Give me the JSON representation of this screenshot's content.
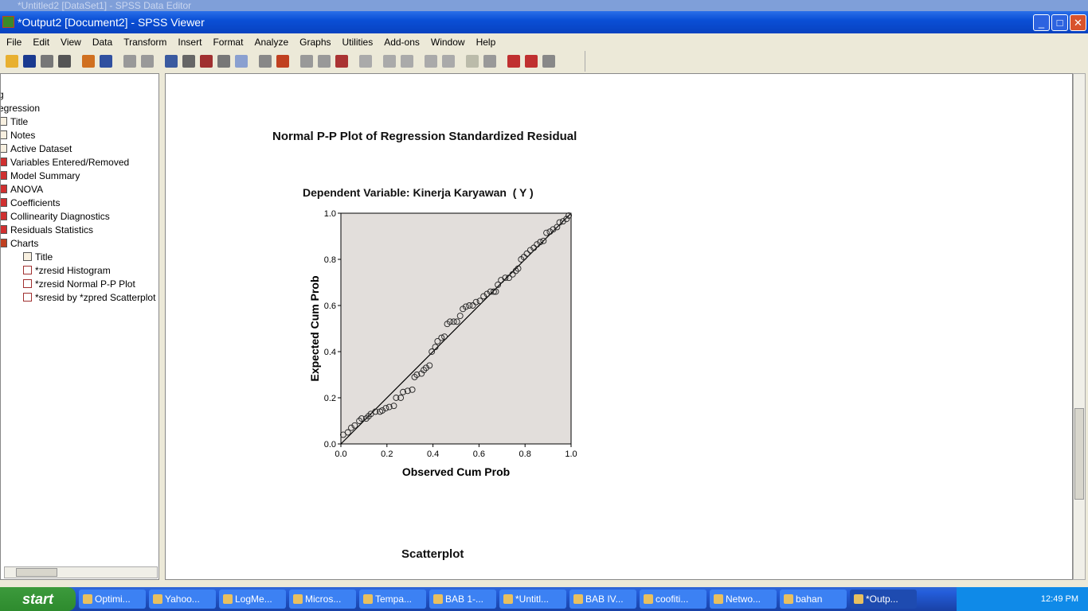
{
  "background_window_title": "*Untitled2 [DataSet1] - SPSS Data Editor",
  "window": {
    "title": "*Output2 [Document2] - SPSS Viewer",
    "min": "_",
    "max": "□",
    "close": "✕"
  },
  "menu": [
    "File",
    "Edit",
    "View",
    "Data",
    "Transform",
    "Insert",
    "Format",
    "Analyze",
    "Graphs",
    "Utilities",
    "Add-ons",
    "Window",
    "Help"
  ],
  "toolbar_icons": [
    "open-icon",
    "save-icon",
    "print-icon",
    "print-preview-icon",
    "export-icon",
    "goto-data-icon",
    "undo-icon",
    "redo-icon",
    "goto-case-icon",
    "variables-icon",
    "insert-cases-icon",
    "variable-info-icon",
    "designate-window-icon",
    "select-cases-icon",
    "show-hide-icon",
    "insert-heading-icon",
    "insert-title-icon",
    "insert-text-icon",
    "create-chart-icon",
    "promote-icon",
    "demote-icon",
    "expand-icon",
    "collapse-icon",
    "show-icon",
    "hide-icon",
    "insert-new-heading-icon",
    "insert-new-title-icon",
    "insert-new-text-icon"
  ],
  "tree": [
    {
      "label": "g",
      "icon": "none",
      "indent": 0
    },
    {
      "label": "egression",
      "icon": "none",
      "indent": 0
    },
    {
      "label": "Title",
      "icon": "page",
      "indent": 0
    },
    {
      "label": "Notes",
      "icon": "page",
      "indent": 0
    },
    {
      "label": "Active Dataset",
      "icon": "page",
      "indent": 0
    },
    {
      "label": "Variables Entered/Removed",
      "icon": "table",
      "indent": 0
    },
    {
      "label": "Model Summary",
      "icon": "table",
      "indent": 0
    },
    {
      "label": "ANOVA",
      "icon": "table",
      "indent": 0
    },
    {
      "label": "Coefficients",
      "icon": "table",
      "indent": 0
    },
    {
      "label": "Collinearity Diagnostics",
      "icon": "table",
      "indent": 0
    },
    {
      "label": "Residuals Statistics",
      "icon": "table",
      "indent": 0
    },
    {
      "label": "Charts",
      "icon": "book",
      "indent": 0
    },
    {
      "label": "Title",
      "icon": "page",
      "indent": 1
    },
    {
      "label": "*zresid Histogram",
      "icon": "chart",
      "indent": 1
    },
    {
      "label": "*zresid Normal P-P Plot",
      "icon": "chart",
      "indent": 1
    },
    {
      "label": "*sresid by *zpred Scatterplot",
      "icon": "chart",
      "indent": 1
    }
  ],
  "output": {
    "next_title": "Scatterplot"
  },
  "chart_data": {
    "type": "scatter",
    "title": "Normal P-P Plot of Regression Standardized Residual",
    "subtitle": "Dependent Variable: Kinerja Karyawan  ( Y )",
    "xlabel": "Observed Cum Prob",
    "ylabel": "Expected Cum Prob",
    "xlim": [
      0,
      1
    ],
    "ylim": [
      0,
      1
    ],
    "xticks": [
      "0.0",
      "0.2",
      "0.4",
      "0.6",
      "0.8",
      "1.0"
    ],
    "yticks": [
      "0.0",
      "0.2",
      "0.4",
      "0.6",
      "0.8",
      "1.0"
    ],
    "reference_line": [
      [
        0,
        0
      ],
      [
        1,
        1
      ]
    ],
    "grid": false,
    "plot_background": "#e2dedb",
    "points": [
      [
        0.01,
        0.04
      ],
      [
        0.03,
        0.05
      ],
      [
        0.045,
        0.07
      ],
      [
        0.06,
        0.08
      ],
      [
        0.08,
        0.1
      ],
      [
        0.09,
        0.11
      ],
      [
        0.11,
        0.11
      ],
      [
        0.12,
        0.12
      ],
      [
        0.13,
        0.13
      ],
      [
        0.15,
        0.14
      ],
      [
        0.17,
        0.14
      ],
      [
        0.18,
        0.145
      ],
      [
        0.195,
        0.155
      ],
      [
        0.21,
        0.16
      ],
      [
        0.23,
        0.165
      ],
      [
        0.24,
        0.2
      ],
      [
        0.26,
        0.2
      ],
      [
        0.27,
        0.225
      ],
      [
        0.29,
        0.23
      ],
      [
        0.31,
        0.235
      ],
      [
        0.32,
        0.29
      ],
      [
        0.33,
        0.3
      ],
      [
        0.35,
        0.305
      ],
      [
        0.36,
        0.32
      ],
      [
        0.37,
        0.33
      ],
      [
        0.385,
        0.34
      ],
      [
        0.395,
        0.4
      ],
      [
        0.41,
        0.42
      ],
      [
        0.42,
        0.445
      ],
      [
        0.437,
        0.46
      ],
      [
        0.45,
        0.465
      ],
      [
        0.462,
        0.52
      ],
      [
        0.474,
        0.53
      ],
      [
        0.49,
        0.53
      ],
      [
        0.504,
        0.53
      ],
      [
        0.518,
        0.555
      ],
      [
        0.53,
        0.585
      ],
      [
        0.543,
        0.595
      ],
      [
        0.558,
        0.6
      ],
      [
        0.573,
        0.6
      ],
      [
        0.587,
        0.615
      ],
      [
        0.604,
        0.62
      ],
      [
        0.62,
        0.64
      ],
      [
        0.635,
        0.65
      ],
      [
        0.65,
        0.66
      ],
      [
        0.664,
        0.66
      ],
      [
        0.673,
        0.66
      ],
      [
        0.682,
        0.69
      ],
      [
        0.696,
        0.71
      ],
      [
        0.714,
        0.72
      ],
      [
        0.73,
        0.72
      ],
      [
        0.746,
        0.735
      ],
      [
        0.76,
        0.75
      ],
      [
        0.77,
        0.76
      ],
      [
        0.783,
        0.8
      ],
      [
        0.795,
        0.81
      ],
      [
        0.808,
        0.825
      ],
      [
        0.823,
        0.84
      ],
      [
        0.838,
        0.85
      ],
      [
        0.852,
        0.865
      ],
      [
        0.866,
        0.875
      ],
      [
        0.88,
        0.88
      ],
      [
        0.893,
        0.915
      ],
      [
        0.908,
        0.92
      ],
      [
        0.922,
        0.93
      ],
      [
        0.939,
        0.94
      ],
      [
        0.95,
        0.96
      ],
      [
        0.965,
        0.965
      ],
      [
        0.98,
        0.975
      ],
      [
        0.99,
        0.99
      ]
    ]
  },
  "taskbar": {
    "start": "start",
    "tasks": [
      "Optimi...",
      "Yahoo...",
      "LogMe...",
      "Micros...",
      "Tempa...",
      "BAB 1-...",
      "*Untitl...",
      "BAB IV...",
      "coofiti...",
      "Netwo...",
      "bahan",
      "*Outp..."
    ],
    "active_index": 11,
    "clock": "12:49 PM"
  }
}
